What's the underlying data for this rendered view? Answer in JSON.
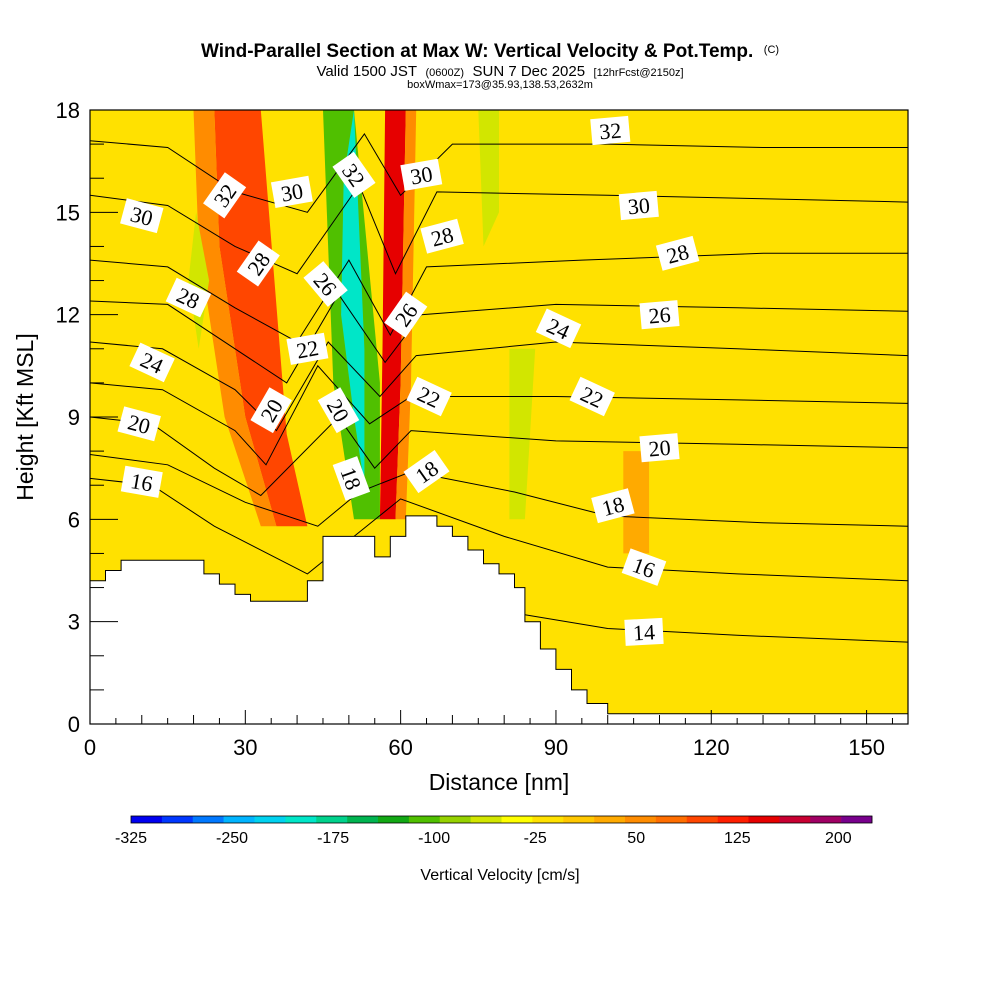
{
  "titles": {
    "line1": "Wind-Parallel Section at Max W: Vertical Velocity & Pot.Temp.",
    "line1_mark": "(C)",
    "line2_a": "Valid 1500 JST",
    "line2_b": "(0600Z)",
    "line2_c": "SUN 7 Dec 2025",
    "line2_d": "[12hrFcst@2150z]",
    "line3": "boxWmax=173@35.93,138.53,2632m"
  },
  "chart_data": {
    "type": "heatmap",
    "xlabel": "Distance [nm]",
    "ylabel": "Height [Kft MSL]",
    "xlim": [
      0,
      158
    ],
    "ylim": [
      0,
      18
    ],
    "x_ticks": [
      0,
      30,
      60,
      90,
      120,
      150
    ],
    "x_tick_labels": [
      "0",
      "30",
      "60",
      "90",
      "120",
      "150"
    ],
    "y_ticks": [
      0,
      3,
      6,
      9,
      12,
      15,
      18
    ],
    "y_tick_labels": [
      "0",
      "3",
      "6",
      "9",
      "12",
      "15",
      "18"
    ],
    "terrain_kft": [
      [
        0,
        4.2
      ],
      [
        3,
        4.2
      ],
      [
        3,
        4.5
      ],
      [
        6,
        4.5
      ],
      [
        6,
        4.8
      ],
      [
        22,
        4.8
      ],
      [
        22,
        4.4
      ],
      [
        25,
        4.4
      ],
      [
        25,
        4.1
      ],
      [
        28,
        4.1
      ],
      [
        28,
        3.8
      ],
      [
        31,
        3.8
      ],
      [
        31,
        3.6
      ],
      [
        42,
        3.6
      ],
      [
        42,
        4.2
      ],
      [
        45,
        4.2
      ],
      [
        45,
        5.5
      ],
      [
        55,
        5.5
      ],
      [
        55,
        4.9
      ],
      [
        58,
        4.9
      ],
      [
        58,
        5.5
      ],
      [
        61,
        5.5
      ],
      [
        61,
        6.1
      ],
      [
        67,
        6.1
      ],
      [
        67,
        5.8
      ],
      [
        70,
        5.8
      ],
      [
        70,
        5.5
      ],
      [
        73,
        5.5
      ],
      [
        73,
        5.1
      ],
      [
        76,
        5.1
      ],
      [
        76,
        4.7
      ],
      [
        79,
        4.7
      ],
      [
        79,
        4.4
      ],
      [
        82,
        4.4
      ],
      [
        82,
        4.0
      ],
      [
        84,
        4.0
      ],
      [
        84,
        3.0
      ],
      [
        87,
        3.0
      ],
      [
        87,
        2.2
      ],
      [
        90,
        2.2
      ],
      [
        90,
        1.6
      ],
      [
        93,
        1.6
      ],
      [
        93,
        1.0
      ],
      [
        96,
        1.0
      ],
      [
        96,
        0.6
      ],
      [
        100,
        0.6
      ],
      [
        100,
        0.3
      ],
      [
        158,
        0.3
      ]
    ],
    "colorbar": {
      "title": "Vertical Velocity [cm/s]",
      "min": -325,
      "max": 225,
      "step": 25,
      "tick_values": [
        -325,
        -250,
        -175,
        -100,
        -25,
        50,
        125,
        200
      ],
      "tick_labels": [
        "-325",
        "-250",
        "-175",
        "-100",
        "-25",
        "50",
        "125",
        "200"
      ],
      "colors": [
        "#0000f0",
        "#0037ff",
        "#0078ff",
        "#00b4ff",
        "#00d2f0",
        "#00e6c8",
        "#00d28c",
        "#00b450",
        "#12a814",
        "#50c000",
        "#96d200",
        "#d2e600",
        "#ffff00",
        "#ffe100",
        "#ffc800",
        "#ffaa00",
        "#ff8c00",
        "#ff6e00",
        "#ff4600",
        "#ff1e00",
        "#e60000",
        "#c80032",
        "#a00064",
        "#78008c"
      ]
    },
    "velocity_regions": [
      {
        "w": 125,
        "poly": [
          [
            24,
            18
          ],
          [
            33,
            18
          ],
          [
            38,
            8.5
          ],
          [
            42,
            5.8
          ],
          [
            36,
            5.8
          ],
          [
            30,
            9
          ],
          [
            25,
            14
          ]
        ]
      },
      {
        "w": 75,
        "poly": [
          [
            20,
            18
          ],
          [
            24,
            18
          ],
          [
            25,
            14
          ],
          [
            30,
            9
          ],
          [
            36,
            5.8
          ],
          [
            33,
            5.8
          ],
          [
            26,
            9
          ],
          [
            21,
            14
          ]
        ]
      },
      {
        "w": -50,
        "poly": [
          [
            20.5,
            15
          ],
          [
            23,
            13
          ],
          [
            21,
            11
          ],
          [
            19,
            13
          ]
        ]
      },
      {
        "w": -100,
        "poly": [
          [
            45,
            18
          ],
          [
            51,
            18
          ],
          [
            56,
            10
          ],
          [
            56,
            6
          ],
          [
            51,
            6
          ],
          [
            47,
            10
          ]
        ]
      },
      {
        "w": -200,
        "poly": [
          [
            49,
            16
          ],
          [
            51,
            18
          ],
          [
            53,
            11
          ],
          [
            53,
            7
          ],
          [
            51,
            9
          ],
          [
            48.5,
            12
          ]
        ]
      },
      {
        "w": 175,
        "poly": [
          [
            57,
            18
          ],
          [
            61,
            18
          ],
          [
            60,
            10
          ],
          [
            59,
            6
          ],
          [
            56,
            6
          ],
          [
            56.5,
            11
          ]
        ]
      },
      {
        "w": 75,
        "poly": [
          [
            61,
            18
          ],
          [
            63,
            18
          ],
          [
            62,
            10
          ],
          [
            61,
            6
          ],
          [
            59,
            6
          ],
          [
            60,
            10
          ]
        ]
      },
      {
        "w": -50,
        "poly": [
          [
            75,
            18
          ],
          [
            79,
            18
          ],
          [
            79,
            15
          ],
          [
            76,
            14
          ]
        ]
      },
      {
        "w": -50,
        "poly": [
          [
            81,
            11
          ],
          [
            86,
            11
          ],
          [
            84,
            6
          ],
          [
            81,
            6
          ]
        ]
      },
      {
        "w": 50,
        "poly": [
          [
            103,
            8
          ],
          [
            108,
            8
          ],
          [
            108,
            5
          ],
          [
            103,
            5
          ]
        ]
      }
    ],
    "theta_contours": [
      {
        "level": 14,
        "pts": [
          [
            84,
            3.2
          ],
          [
            100,
            2.8
          ],
          [
            125,
            2.6
          ],
          [
            158,
            2.4
          ]
        ]
      },
      {
        "level": 16,
        "pts": [
          [
            0,
            7.2
          ],
          [
            12,
            7.0
          ],
          [
            24,
            5.8
          ],
          [
            42,
            4.4
          ],
          [
            60,
            6.6
          ],
          [
            80,
            5.5
          ],
          [
            100,
            4.6
          ],
          [
            125,
            4.4
          ],
          [
            158,
            4.2
          ]
        ]
      },
      {
        "level": 18,
        "pts": [
          [
            0,
            7.9
          ],
          [
            15,
            7.6
          ],
          [
            30,
            6.5
          ],
          [
            44,
            5.8
          ],
          [
            52,
            6.8
          ],
          [
            62,
            7.4
          ],
          [
            82,
            6.8
          ],
          [
            100,
            6.1
          ],
          [
            130,
            5.9
          ],
          [
            158,
            5.8
          ]
        ]
      },
      {
        "level": 20,
        "pts": [
          [
            0,
            9.0
          ],
          [
            12,
            8.8
          ],
          [
            24,
            7.5
          ],
          [
            33,
            6.7
          ],
          [
            48,
            9.0
          ],
          [
            55,
            7.5
          ],
          [
            62,
            8.6
          ],
          [
            90,
            8.3
          ],
          [
            125,
            8.2
          ],
          [
            158,
            8.1
          ]
        ]
      },
      {
        "level": 22,
        "pts": [
          [
            0,
            10.0
          ],
          [
            14,
            9.8
          ],
          [
            28,
            8.6
          ],
          [
            34,
            7.6
          ],
          [
            44,
            10.5
          ],
          [
            54,
            8.8
          ],
          [
            62,
            9.6
          ],
          [
            90,
            9.6
          ],
          [
            125,
            9.5
          ],
          [
            158,
            9.4
          ]
        ]
      },
      {
        "level": 24,
        "pts": [
          [
            0,
            11.2
          ],
          [
            14,
            11.0
          ],
          [
            28,
            9.8
          ],
          [
            36,
            8.6
          ],
          [
            46,
            11.2
          ],
          [
            56,
            9.6
          ],
          [
            63,
            10.8
          ],
          [
            90,
            11.2
          ],
          [
            125,
            11.0
          ],
          [
            158,
            10.8
          ]
        ]
      },
      {
        "level": 26,
        "pts": [
          [
            0,
            12.4
          ],
          [
            15,
            12.3
          ],
          [
            28,
            11.0
          ],
          [
            38,
            10.0
          ],
          [
            48,
            12.6
          ],
          [
            57,
            10.6
          ],
          [
            64,
            12.0
          ],
          [
            90,
            12.3
          ],
          [
            125,
            12.2
          ],
          [
            158,
            12.1
          ]
        ]
      },
      {
        "level": 28,
        "pts": [
          [
            0,
            13.6
          ],
          [
            15,
            13.4
          ],
          [
            28,
            12.2
          ],
          [
            40,
            11.2
          ],
          [
            50,
            13.6
          ],
          [
            58,
            11.4
          ],
          [
            65,
            13.4
          ],
          [
            95,
            13.6
          ],
          [
            130,
            13.8
          ],
          [
            158,
            13.8
          ]
        ]
      },
      {
        "level": 30,
        "pts": [
          [
            0,
            15.5
          ],
          [
            15,
            15.2
          ],
          [
            28,
            14.0
          ],
          [
            40,
            13.2
          ],
          [
            52,
            15.8
          ],
          [
            59,
            13.2
          ],
          [
            67,
            15.6
          ],
          [
            100,
            15.5
          ],
          [
            130,
            15.4
          ],
          [
            158,
            15.3
          ]
        ]
      },
      {
        "level": 32,
        "pts": [
          [
            0,
            17.1
          ],
          [
            15,
            16.9
          ],
          [
            28,
            15.6
          ],
          [
            42,
            15.0
          ],
          [
            53,
            17.3
          ],
          [
            60,
            15.5
          ],
          [
            70,
            17.0
          ],
          [
            100,
            17.0
          ],
          [
            130,
            16.9
          ],
          [
            158,
            16.9
          ]
        ]
      }
    ],
    "theta_labels": [
      {
        "text": "32",
        "x": 26,
        "y": 15.5,
        "angle": -55
      },
      {
        "text": "30",
        "x": 39,
        "y": 15.6,
        "angle": -10
      },
      {
        "text": "32",
        "x": 51,
        "y": 16.1,
        "angle": 55
      },
      {
        "text": "30",
        "x": 64,
        "y": 16.1,
        "angle": -10
      },
      {
        "text": "32",
        "x": 100.5,
        "y": 17.4,
        "angle": -5
      },
      {
        "text": "30",
        "x": 10,
        "y": 14.9,
        "angle": 15
      },
      {
        "text": "30",
        "x": 106,
        "y": 15.2,
        "angle": -5
      },
      {
        "text": "28",
        "x": 68,
        "y": 14.3,
        "angle": -15
      },
      {
        "text": "28",
        "x": 32.5,
        "y": 13.5,
        "angle": -55
      },
      {
        "text": "28",
        "x": 19,
        "y": 12.5,
        "angle": 25
      },
      {
        "text": "28",
        "x": 113.5,
        "y": 13.8,
        "angle": -15
      },
      {
        "text": "26",
        "x": 45.5,
        "y": 12.9,
        "angle": 50
      },
      {
        "text": "26",
        "x": 61,
        "y": 12.0,
        "angle": -55
      },
      {
        "text": "26",
        "x": 110,
        "y": 12.0,
        "angle": -5
      },
      {
        "text": "24",
        "x": 12,
        "y": 10.6,
        "angle": 25
      },
      {
        "text": "24",
        "x": 90.5,
        "y": 11.6,
        "angle": 25
      },
      {
        "text": "22",
        "x": 42,
        "y": 11.0,
        "angle": -10
      },
      {
        "text": "22",
        "x": 97,
        "y": 9.6,
        "angle": 25
      },
      {
        "text": "22",
        "x": 65.5,
        "y": 9.6,
        "angle": 25
      },
      {
        "text": "20",
        "x": 35,
        "y": 9.2,
        "angle": -60
      },
      {
        "text": "20",
        "x": 48,
        "y": 9.2,
        "angle": 60
      },
      {
        "text": "20",
        "x": 9.5,
        "y": 8.8,
        "angle": 15
      },
      {
        "text": "20",
        "x": 110,
        "y": 8.1,
        "angle": -5
      },
      {
        "text": "18",
        "x": 50.5,
        "y": 7.2,
        "angle": 70
      },
      {
        "text": "18",
        "x": 65,
        "y": 7.4,
        "angle": -35
      },
      {
        "text": "18",
        "x": 101,
        "y": 6.4,
        "angle": -15
      },
      {
        "text": "16",
        "x": 10,
        "y": 7.1,
        "angle": 10
      },
      {
        "text": "16",
        "x": 107,
        "y": 4.6,
        "angle": 20
      },
      {
        "text": "14",
        "x": 107,
        "y": 2.7,
        "angle": -3
      }
    ]
  }
}
